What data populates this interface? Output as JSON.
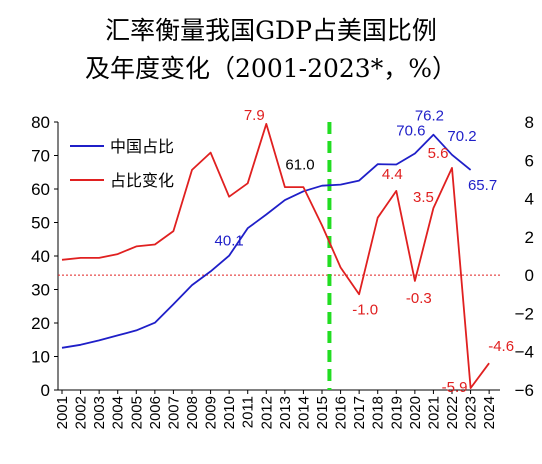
{
  "chart_data": {
    "type": "line",
    "title": "汇率衡量我国GDP占美国比例",
    "subtitle": "及年度变化（2001-2023*，%）",
    "x": [
      "2001",
      "2002",
      "2003",
      "2004",
      "2005",
      "2006",
      "2007",
      "2008",
      "2009",
      "2010",
      "2011",
      "2012",
      "2013",
      "2014",
      "2015",
      "2016",
      "2017",
      "2018",
      "2019",
      "2020",
      "2021",
      "2022",
      "2023",
      "2024"
    ],
    "series": [
      {
        "name": "中国占比",
        "axis": "left",
        "color": "#1f1fc8",
        "values": [
          12.6,
          13.5,
          14.8,
          16.3,
          17.8,
          20.1,
          25.6,
          31.3,
          35.4,
          40.1,
          48.3,
          52.4,
          56.7,
          59.3,
          61.0,
          61.3,
          62.5,
          67.4,
          67.3,
          70.6,
          76.2,
          70.2,
          65.7,
          null
        ],
        "labels": [
          {
            "index": 9,
            "text": "40.1"
          },
          {
            "index": 14,
            "text": "61.0"
          },
          {
            "index": 19,
            "text": "70.6"
          },
          {
            "index": 20,
            "text": "76.2"
          },
          {
            "index": 21,
            "text": "70.2"
          },
          {
            "index": 22,
            "text": "65.7"
          }
        ]
      },
      {
        "name": "占比变化",
        "axis": "right",
        "color": "#e02020",
        "values": [
          0.8,
          0.9,
          0.9,
          1.1,
          1.5,
          1.6,
          2.3,
          5.5,
          6.4,
          4.1,
          4.8,
          7.9,
          4.6,
          4.6,
          2.6,
          0.4,
          -1.0,
          3.0,
          4.4,
          -0.3,
          3.5,
          5.6,
          -5.9,
          -4.6
        ],
        "labels": [
          {
            "index": 11,
            "text": "7.9"
          },
          {
            "index": 16,
            "text": "-1.0"
          },
          {
            "index": 18,
            "text": "4.4"
          },
          {
            "index": 19,
            "text": "-0.3"
          },
          {
            "index": 20,
            "text": "3.5"
          },
          {
            "index": 21,
            "text": "5.6"
          },
          {
            "index": 22,
            "text": "-5.9"
          },
          {
            "index": 23,
            "text": "-4.6"
          }
        ]
      }
    ],
    "y_left": {
      "min": 0,
      "max": 80,
      "ticks": [
        "0",
        "10",
        "20",
        "30",
        "40",
        "50",
        "60",
        "70",
        "80"
      ]
    },
    "y_right": {
      "min": -6,
      "max": 8,
      "ticks": [
        "−6",
        "−4",
        "−2",
        "0",
        "2",
        "4",
        "6",
        "8"
      ]
    },
    "reference_lines": [
      {
        "axis": "right",
        "value": 0,
        "color": "#e02020",
        "style": "dotted"
      },
      {
        "axis": "x",
        "value": "2015",
        "color": "#22dd22",
        "style": "dashed"
      }
    ],
    "legend": {
      "position": "top-left"
    },
    "grid": false
  }
}
